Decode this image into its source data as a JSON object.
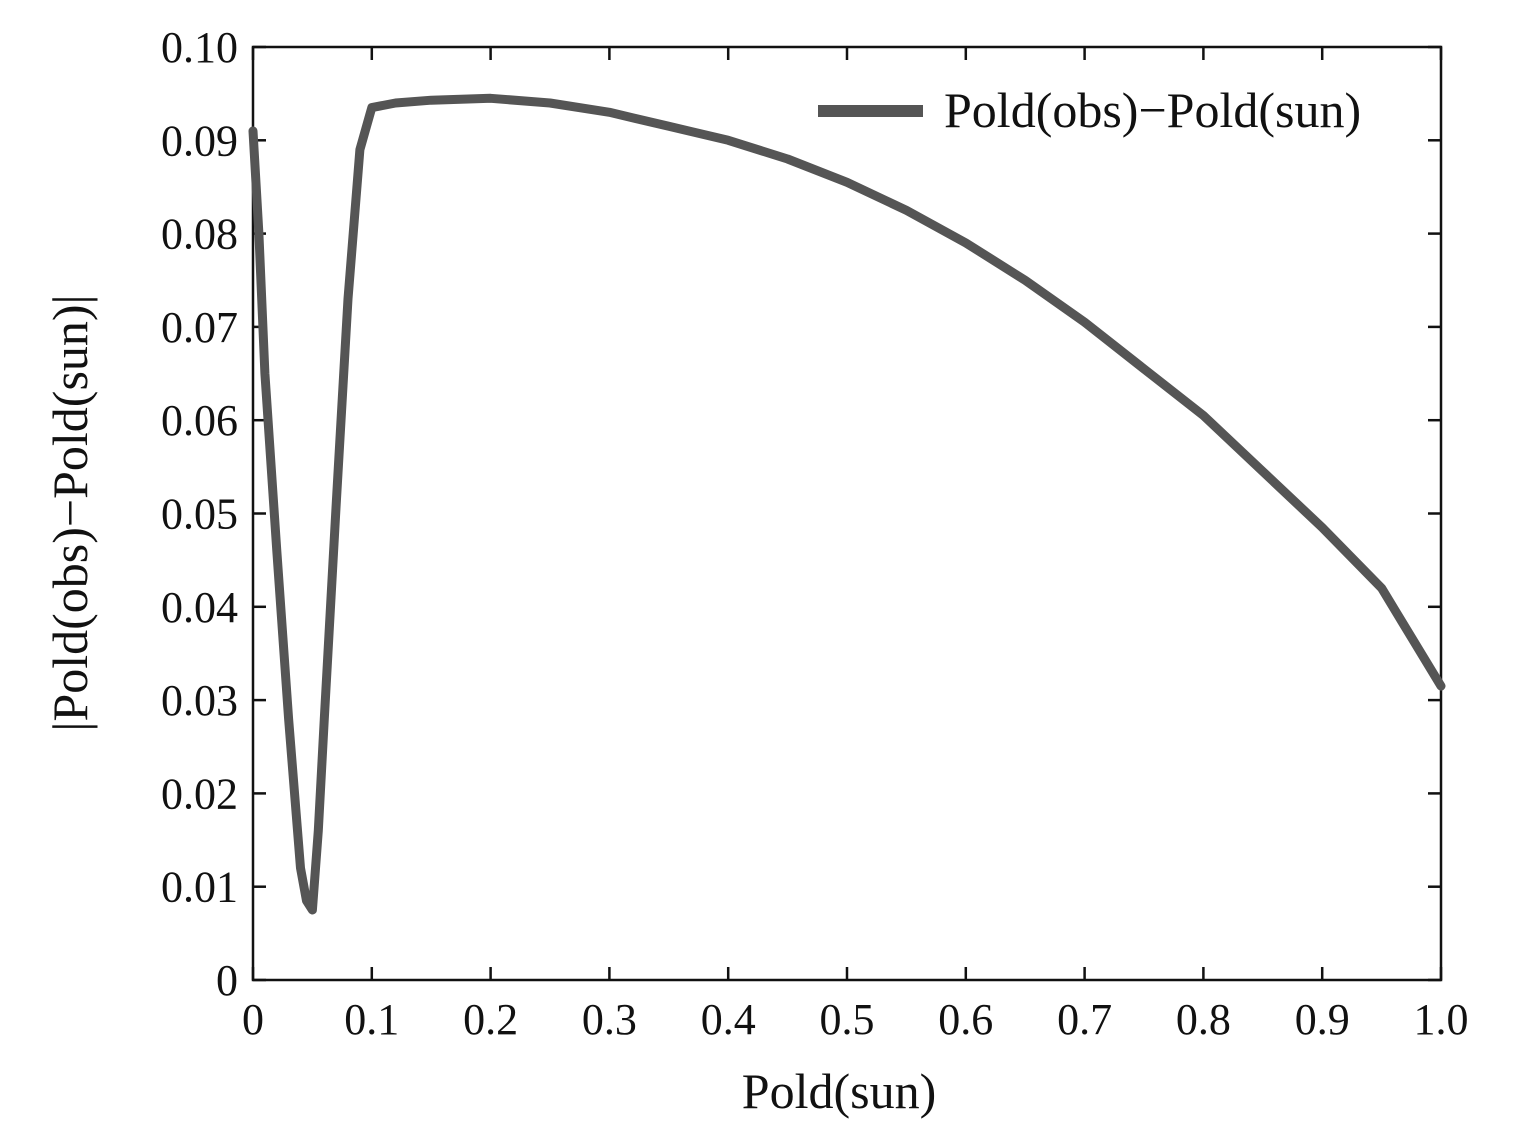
{
  "chart_data": {
    "type": "line",
    "xlabel": "Pold(sun)",
    "ylabel": "|Pold(obs)−Pold(sun)|",
    "xlim": [
      0,
      1.0
    ],
    "ylim": [
      0,
      0.1
    ],
    "x_ticks": [
      0,
      0.1,
      0.2,
      0.3,
      0.4,
      0.5,
      0.6,
      0.7,
      0.8,
      0.9,
      1.0
    ],
    "x_tick_labels": [
      "0",
      "0.1",
      "0.2",
      "0.3",
      "0.4",
      "0.5",
      "0.6",
      "0.7",
      "0.8",
      "0.9",
      "1.0"
    ],
    "y_ticks": [
      0,
      0.01,
      0.02,
      0.03,
      0.04,
      0.05,
      0.06,
      0.07,
      0.08,
      0.09,
      0.1
    ],
    "y_tick_labels": [
      "0",
      "0.01",
      "0.02",
      "0.03",
      "0.04",
      "0.05",
      "0.06",
      "0.07",
      "0.08",
      "0.09",
      "0.10"
    ],
    "grid": false,
    "legend_position": "top-right",
    "series": [
      {
        "name": "Pold(obs)−Pold(sun)",
        "color": "#555555",
        "x": [
          0,
          0.005,
          0.01,
          0.02,
          0.03,
          0.04,
          0.045,
          0.05,
          0.055,
          0.06,
          0.07,
          0.08,
          0.09,
          0.1,
          0.12,
          0.15,
          0.2,
          0.25,
          0.3,
          0.35,
          0.4,
          0.45,
          0.5,
          0.55,
          0.6,
          0.65,
          0.7,
          0.75,
          0.8,
          0.85,
          0.9,
          0.95,
          1.0
        ],
        "y": [
          0.091,
          0.08,
          0.065,
          0.046,
          0.028,
          0.012,
          0.0085,
          0.0075,
          0.016,
          0.028,
          0.051,
          0.073,
          0.089,
          0.0935,
          0.094,
          0.0943,
          0.0945,
          0.094,
          0.093,
          0.0915,
          0.09,
          0.088,
          0.0855,
          0.0825,
          0.079,
          0.075,
          0.0705,
          0.0655,
          0.0605,
          0.0545,
          0.0485,
          0.042,
          0.0315
        ]
      }
    ]
  }
}
